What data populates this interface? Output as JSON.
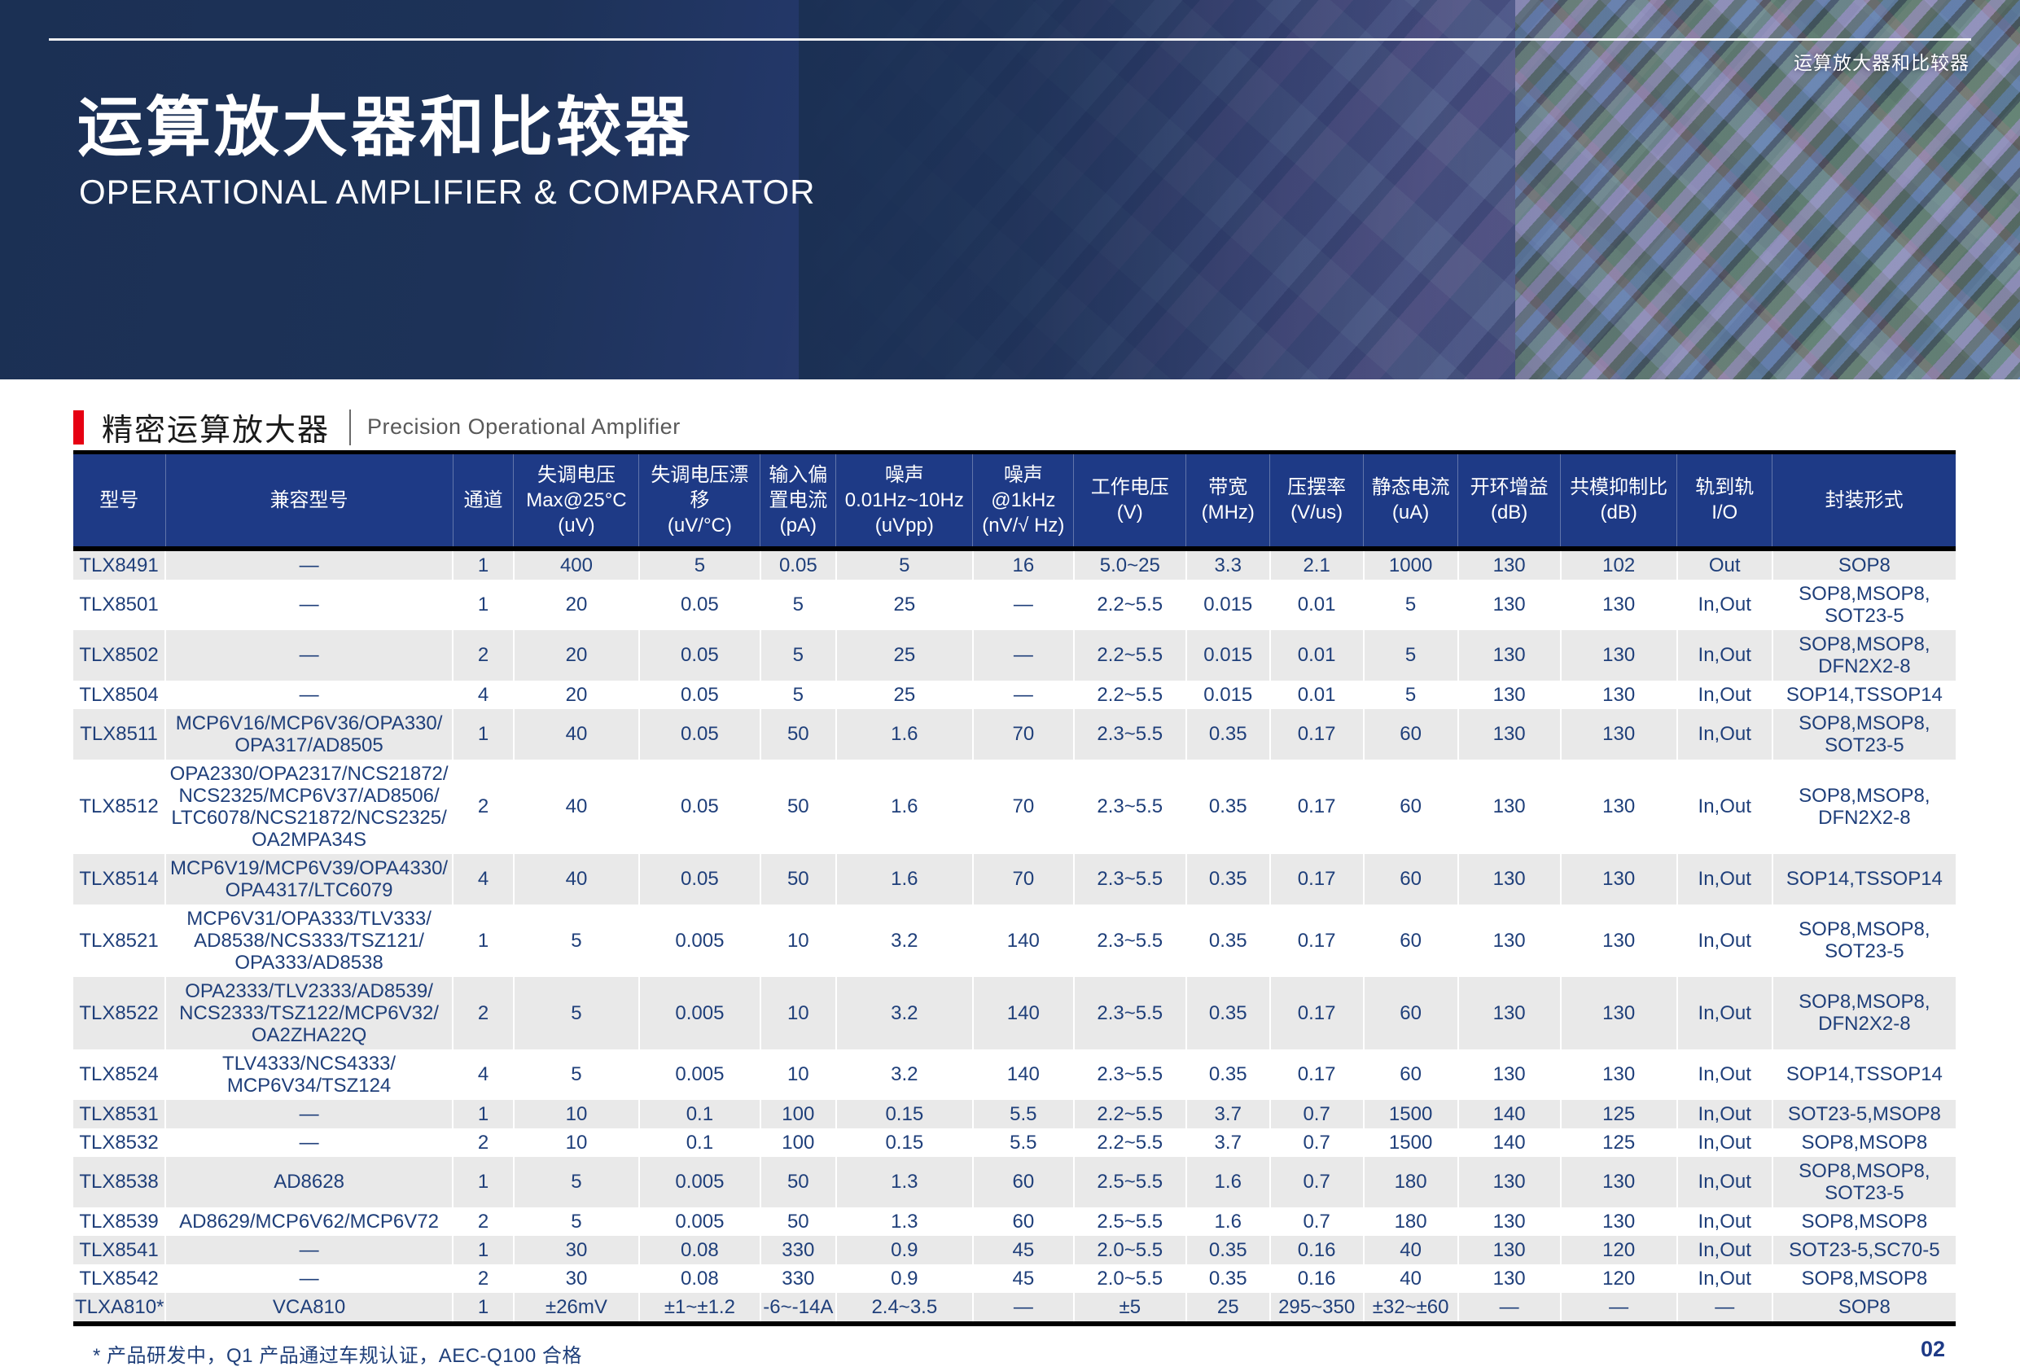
{
  "page": {
    "corner_label": "运算放大器和比较器",
    "title_cn": "运算放大器和比较器",
    "title_en": "OPERATIONAL AMPLIFIER & COMPARATOR",
    "section": {
      "title_cn": "精密运算放大器",
      "title_en": "Precision Operational Amplifier"
    },
    "footnote": "* 产品研发中，Q1 产品通过车规认证，AEC-Q100 合格",
    "page_number": "02"
  },
  "colors": {
    "table_header_bg": "#1e3a86",
    "accent_red": "#e60012",
    "row_alt_bg": "#e9e9e9",
    "cell_text": "#1f3f7a",
    "hero_navy": "#1b3054"
  },
  "table": {
    "columns": [
      "型号",
      "兼容型号",
      "通道",
      "失调电压\nMax@25°C\n(uV)",
      "失调电压漂移\n(uV/°C)",
      "输入偏\n置电流\n(pA)",
      "噪声\n0.01Hz~10Hz\n(uVpp)",
      "噪声\n@1kHz\n(nV/√ Hz)",
      "工作电压\n(V)",
      "带宽\n(MHz)",
      "压摆率\n(V/us)",
      "静态电流\n(uA)",
      "开环增益\n(dB)",
      "共模抑制比\n(dB)",
      "轨到轨\nI/O",
      "封装形式"
    ],
    "rows": [
      [
        "TLX8491",
        "—",
        "1",
        "400",
        "5",
        "0.05",
        "5",
        "16",
        "5.0~25",
        "3.3",
        "2.1",
        "1000",
        "130",
        "102",
        "Out",
        "SOP8"
      ],
      [
        "TLX8501",
        "—",
        "1",
        "20",
        "0.05",
        "5",
        "25",
        "—",
        "2.2~5.5",
        "0.015",
        "0.01",
        "5",
        "130",
        "130",
        "In,Out",
        "SOP8,MSOP8,\nSOT23-5"
      ],
      [
        "TLX8502",
        "—",
        "2",
        "20",
        "0.05",
        "5",
        "25",
        "—",
        "2.2~5.5",
        "0.015",
        "0.01",
        "5",
        "130",
        "130",
        "In,Out",
        "SOP8,MSOP8,\nDFN2X2-8"
      ],
      [
        "TLX8504",
        "—",
        "4",
        "20",
        "0.05",
        "5",
        "25",
        "—",
        "2.2~5.5",
        "0.015",
        "0.01",
        "5",
        "130",
        "130",
        "In,Out",
        "SOP14,TSSOP14"
      ],
      [
        "TLX8511",
        "MCP6V16/MCP6V36/OPA330/\nOPA317/AD8505",
        "1",
        "40",
        "0.05",
        "50",
        "1.6",
        "70",
        "2.3~5.5",
        "0.35",
        "0.17",
        "60",
        "130",
        "130",
        "In,Out",
        "SOP8,MSOP8,\nSOT23-5"
      ],
      [
        "TLX8512",
        "OPA2330/OPA2317/NCS21872/\nNCS2325/MCP6V37/AD8506/\nLTC6078/NCS21872/NCS2325/\nOA2MPA34S",
        "2",
        "40",
        "0.05",
        "50",
        "1.6",
        "70",
        "2.3~5.5",
        "0.35",
        "0.17",
        "60",
        "130",
        "130",
        "In,Out",
        "SOP8,MSOP8,\nDFN2X2-8"
      ],
      [
        "TLX8514",
        "MCP6V19/MCP6V39/OPA4330/\nOPA4317/LTC6079",
        "4",
        "40",
        "0.05",
        "50",
        "1.6",
        "70",
        "2.3~5.5",
        "0.35",
        "0.17",
        "60",
        "130",
        "130",
        "In,Out",
        "SOP14,TSSOP14"
      ],
      [
        "TLX8521",
        "MCP6V31/OPA333/TLV333/\nAD8538/NCS333/TSZ121/\nOPA333/AD8538",
        "1",
        "5",
        "0.005",
        "10",
        "3.2",
        "140",
        "2.3~5.5",
        "0.35",
        "0.17",
        "60",
        "130",
        "130",
        "In,Out",
        "SOP8,MSOP8,\nSOT23-5"
      ],
      [
        "TLX8522",
        "OPA2333/TLV2333/AD8539/\nNCS2333/TSZ122/MCP6V32/\nOA2ZHA22Q",
        "2",
        "5",
        "0.005",
        "10",
        "3.2",
        "140",
        "2.3~5.5",
        "0.35",
        "0.17",
        "60",
        "130",
        "130",
        "In,Out",
        "SOP8,MSOP8,\nDFN2X2-8"
      ],
      [
        "TLX8524",
        "TLV4333/NCS4333/\nMCP6V34/TSZ124",
        "4",
        "5",
        "0.005",
        "10",
        "3.2",
        "140",
        "2.3~5.5",
        "0.35",
        "0.17",
        "60",
        "130",
        "130",
        "In,Out",
        "SOP14,TSSOP14"
      ],
      [
        "TLX8531",
        "—",
        "1",
        "10",
        "0.1",
        "100",
        "0.15",
        "5.5",
        "2.2~5.5",
        "3.7",
        "0.7",
        "1500",
        "140",
        "125",
        "In,Out",
        "SOT23-5,MSOP8"
      ],
      [
        "TLX8532",
        "—",
        "2",
        "10",
        "0.1",
        "100",
        "0.15",
        "5.5",
        "2.2~5.5",
        "3.7",
        "0.7",
        "1500",
        "140",
        "125",
        "In,Out",
        "SOP8,MSOP8"
      ],
      [
        "TLX8538",
        "AD8628",
        "1",
        "5",
        "0.005",
        "50",
        "1.3",
        "60",
        "2.5~5.5",
        "1.6",
        "0.7",
        "180",
        "130",
        "130",
        "In,Out",
        "SOP8,MSOP8,\nSOT23-5"
      ],
      [
        "TLX8539",
        "AD8629/MCP6V62/MCP6V72",
        "2",
        "5",
        "0.005",
        "50",
        "1.3",
        "60",
        "2.5~5.5",
        "1.6",
        "0.7",
        "180",
        "130",
        "130",
        "In,Out",
        "SOP8,MSOP8"
      ],
      [
        "TLX8541",
        "—",
        "1",
        "30",
        "0.08",
        "330",
        "0.9",
        "45",
        "2.0~5.5",
        "0.35",
        "0.16",
        "40",
        "130",
        "120",
        "In,Out",
        "SOT23-5,SC70-5"
      ],
      [
        "TLX8542",
        "—",
        "2",
        "30",
        "0.08",
        "330",
        "0.9",
        "45",
        "2.0~5.5",
        "0.35",
        "0.16",
        "40",
        "130",
        "120",
        "In,Out",
        "SOP8,MSOP8"
      ],
      [
        "TLXA810*",
        "VCA810",
        "1",
        "±26mV",
        "±1~±1.2",
        "-6~-14A",
        "2.4~3.5",
        "—",
        "±5",
        "25",
        "295~350",
        "±32~±60",
        "—",
        "—",
        "—",
        "SOP8"
      ]
    ]
  }
}
